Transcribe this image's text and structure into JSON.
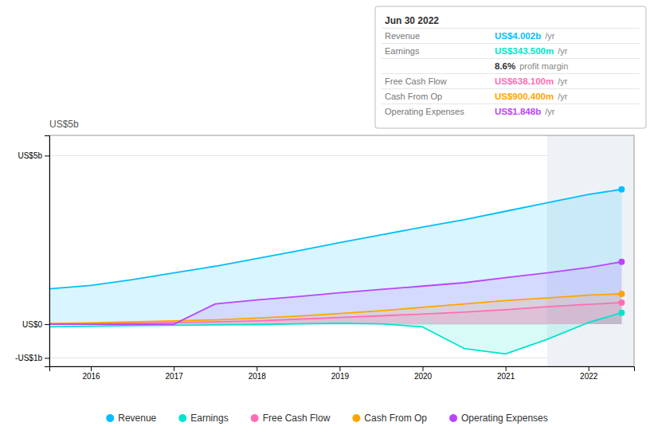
{
  "chart_data": {
    "type": "area",
    "ylabel": "US$5b",
    "x": [
      2015.5,
      2016.0,
      2016.5,
      2017.0,
      2017.5,
      2018.0,
      2018.5,
      2019.0,
      2019.5,
      2020.0,
      2020.5,
      2021.0,
      2021.5,
      2022.0,
      2022.4
    ],
    "series": [
      {
        "name": "Revenue",
        "color": "#00bfff",
        "values": [
          1.05,
          1.15,
          1.32,
          1.52,
          1.72,
          1.95,
          2.18,
          2.42,
          2.65,
          2.88,
          3.1,
          3.35,
          3.6,
          3.85,
          4.0
        ]
      },
      {
        "name": "Earnings",
        "color": "#00e5cc",
        "values": [
          -0.08,
          -0.06,
          -0.04,
          -0.03,
          -0.02,
          -0.01,
          0.01,
          0.03,
          0.01,
          -0.08,
          -0.72,
          -0.88,
          -0.45,
          0.05,
          0.34
        ]
      },
      {
        "name": "Free Cash Flow",
        "color": "#ff6eb4",
        "values": [
          0.01,
          0.02,
          0.03,
          0.05,
          0.07,
          0.1,
          0.15,
          0.2,
          0.25,
          0.3,
          0.36,
          0.43,
          0.52,
          0.59,
          0.64
        ]
      },
      {
        "name": "Cash From Op",
        "color": "#ffa500",
        "values": [
          0.02,
          0.04,
          0.07,
          0.1,
          0.13,
          0.18,
          0.24,
          0.32,
          0.4,
          0.5,
          0.6,
          0.7,
          0.78,
          0.86,
          0.9
        ]
      },
      {
        "name": "Operating Expenses",
        "color": "#bb44ff",
        "values": [
          0.0,
          0.0,
          0.0,
          0.0,
          0.6,
          0.72,
          0.82,
          0.93,
          1.03,
          1.13,
          1.23,
          1.38,
          1.52,
          1.68,
          1.85
        ]
      }
    ],
    "xlim": [
      2015.5,
      2022.55
    ],
    "ylim": [
      -1.25,
      5.6
    ],
    "xticks": [
      2016,
      2017,
      2018,
      2019,
      2020,
      2021,
      2022
    ],
    "yticks": [
      {
        "value": -1.0,
        "label": "-US$1b"
      },
      {
        "value": 0.0,
        "label": "US$0"
      },
      {
        "value": 5.0,
        "label": "US$5b"
      }
    ],
    "grid": true,
    "legend": "bottom",
    "highlight_start": 2021.5,
    "annotations": [
      {
        "text": "Jun 30 2022"
      },
      {
        "label": "Revenue",
        "text": "US$4.002b",
        "suffix": "/yr",
        "color": "#00bfff"
      },
      {
        "label": "Earnings",
        "text": "US$343.500m",
        "suffix": "/yr",
        "color": "#00e5cc"
      },
      {
        "text": "8.6%",
        "suffix": "profit margin"
      },
      {
        "label": "Free Cash Flow",
        "text": "US$638.100m",
        "suffix": "/yr",
        "color": "#ff6eb4"
      },
      {
        "label": "Cash From Op",
        "text": "US$900.400m",
        "suffix": "/yr",
        "color": "#ffa500"
      },
      {
        "label": "Operating Expenses",
        "text": "US$1.848b",
        "suffix": "/yr",
        "color": "#bb44ff"
      }
    ]
  }
}
